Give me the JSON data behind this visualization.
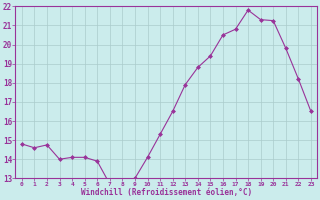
{
  "x": [
    0,
    1,
    2,
    3,
    4,
    5,
    6,
    7,
    8,
    9,
    10,
    11,
    12,
    13,
    14,
    15,
    16,
    17,
    18,
    19,
    20,
    21,
    22,
    23
  ],
  "y": [
    14.8,
    14.6,
    14.75,
    14.0,
    14.1,
    14.1,
    13.9,
    12.7,
    12.75,
    13.0,
    14.1,
    15.3,
    16.5,
    17.9,
    18.8,
    19.4,
    20.5,
    20.8,
    21.8,
    21.3,
    21.25,
    19.8,
    18.2,
    16.5
  ],
  "line_color": "#993399",
  "marker": "D",
  "marker_size": 2.0,
  "bg_color": "#cbecec",
  "grid_color": "#aacccc",
  "xlabel": "Windchill (Refroidissement éolien,°C)",
  "xlabel_color": "#993399",
  "tick_color": "#993399",
  "ylim": [
    13,
    22
  ],
  "xlim": [
    -0.5,
    23.5
  ],
  "yticks": [
    13,
    14,
    15,
    16,
    17,
    18,
    19,
    20,
    21,
    22
  ],
  "xticks": [
    0,
    1,
    2,
    3,
    4,
    5,
    6,
    7,
    8,
    9,
    10,
    11,
    12,
    13,
    14,
    15,
    16,
    17,
    18,
    19,
    20,
    21,
    22,
    23
  ]
}
